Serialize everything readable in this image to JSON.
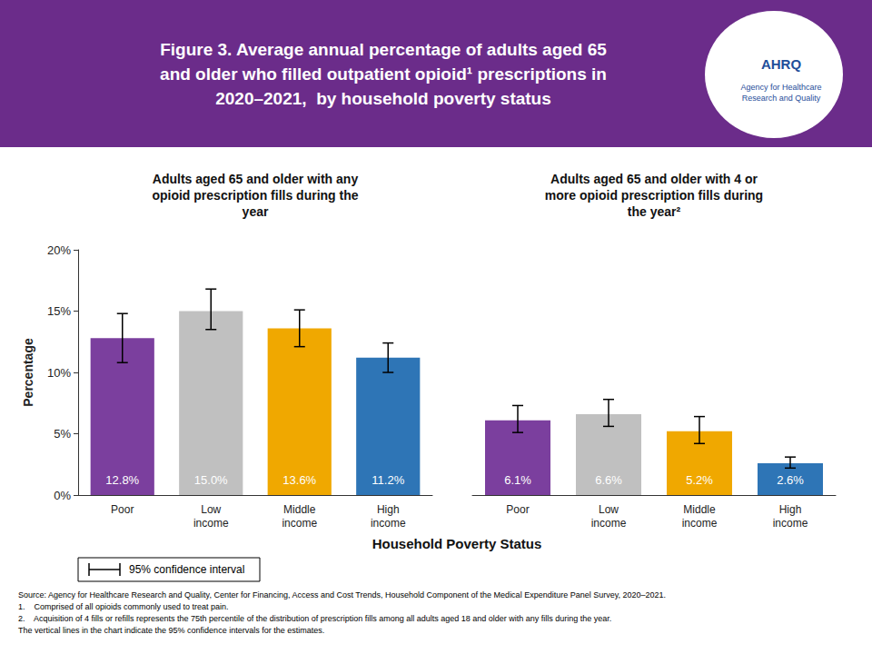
{
  "chart_data": {
    "type": "bar",
    "title": "Figure 3. Average annual percentage of adults aged 65\nand older who filled outpatient opioid¹ prescriptions in\n2020–2021,  by household poverty status",
    "header_bg_color": "#6B2C8A",
    "header_text_color": "#FFFFFF",
    "logo_text": "AHRQ",
    "logo_subtitle": "Agency for Healthcare\nResearch and Quality",
    "logo_color": "#1F4E9A",
    "categories": [
      "Poor",
      "Low\nincome",
      "Middle\nincome",
      "High\nincome"
    ],
    "colors": [
      "#7B3F9E",
      "#C0C0C0",
      "#F0A800",
      "#2E75B6"
    ],
    "groups": [
      {
        "title": "Adults aged 65 and older with any\nopioid prescription fills during the\nyear",
        "values": [
          12.8,
          15.0,
          13.6,
          11.2
        ],
        "value_labels": [
          "12.8%",
          "15.0%",
          "13.6%",
          "11.2%"
        ],
        "errors_low": [
          2.0,
          1.5,
          1.5,
          1.2
        ],
        "errors_high": [
          2.0,
          1.8,
          1.5,
          1.2
        ]
      },
      {
        "title": "Adults aged 65 and older with 4 or\nmore opioid prescription fills during\nthe year²",
        "values": [
          6.1,
          6.6,
          5.2,
          2.6
        ],
        "value_labels": [
          "6.1%",
          "6.6%",
          "5.2%",
          "2.6%"
        ],
        "errors_low": [
          1.0,
          1.0,
          1.0,
          0.4
        ],
        "errors_high": [
          1.2,
          1.2,
          1.2,
          0.5
        ]
      }
    ],
    "error_color": "#000000",
    "ylabel": "Percentage",
    "xlabel": "Household Poverty Status",
    "ylim": [
      0,
      20
    ],
    "yticks": [
      {
        "value": 0,
        "label": "0%"
      },
      {
        "value": 5,
        "label": "5%"
      },
      {
        "value": 10,
        "label": "10%"
      },
      {
        "value": 15,
        "label": "15%"
      },
      {
        "value": 20,
        "label": "20%"
      }
    ],
    "grid": false,
    "data_labels": true,
    "ci_legend_text": "95% confidence interval",
    "source": "Source: Agency for Healthcare Research and Quality, Center for Financing, Access and Cost Trends, Household Component of the Medical Expenditure Panel Survey, 2020–2021.\n1.    Comprised of all opioids commonly used to treat pain.\n2.    Acquisition of 4 fills or refills represents the 75th percentile of the distribution of prescription fills among all adults aged 18 and older with any fills during the year.\nThe vertical lines in the chart indicate the 95% confidence intervals for the estimates."
  }
}
